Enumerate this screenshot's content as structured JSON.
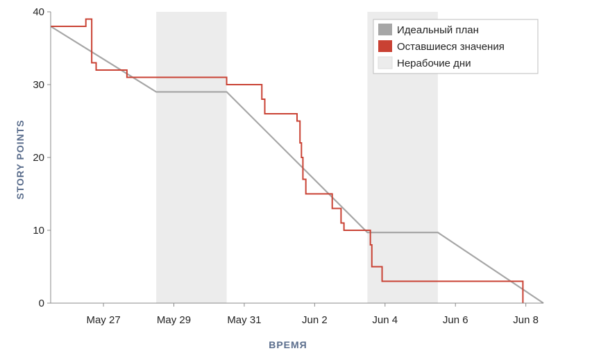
{
  "chart_data": {
    "type": "line",
    "title": "",
    "xlabel": "ВРЕМЯ",
    "ylabel": "STORY POINTS",
    "x_axis_type": "date",
    "xlim": [
      "May 25 12:00",
      "Jun 8 12:00"
    ],
    "ylim": [
      0,
      40
    ],
    "y_ticks": [
      0,
      10,
      20,
      30,
      40
    ],
    "x_ticks": [
      {
        "date": "May 27",
        "label": "May 27"
      },
      {
        "date": "May 29",
        "label": "May 29"
      },
      {
        "date": "May 31",
        "label": "May 31"
      },
      {
        "date": "Jun 2",
        "label": "Jun 2"
      },
      {
        "date": "Jun 4",
        "label": "Jun 4"
      },
      {
        "date": "Jun 6",
        "label": "Jun 6"
      },
      {
        "date": "Jun 8",
        "label": "Jun 8"
      }
    ],
    "grid": false,
    "legend_position": "top-right",
    "non_working_days": [
      {
        "start": "May 28 12:00",
        "end": "May 30 12:00"
      },
      {
        "start": "Jun 3 12:00",
        "end": "Jun 5 12:00"
      }
    ],
    "series": [
      {
        "name": "Идеальный план",
        "color": "#a6a6a6",
        "points": [
          [
            "May 25 12:00",
            38
          ],
          [
            "May 28 12:00",
            29
          ],
          [
            "May 30 12:00",
            29
          ],
          [
            "Jun 3 12:00",
            9.7
          ],
          [
            "Jun 5 12:00",
            9.7
          ],
          [
            "Jun 8 12:00",
            0
          ]
        ]
      },
      {
        "name": "Оставшиеся значения",
        "color": "#c94133",
        "step": true,
        "points": [
          [
            "May 25 12:00",
            38
          ],
          [
            "May 26 12:00",
            38
          ],
          [
            "May 26 12:00",
            39
          ],
          [
            "May 26 16:00",
            39
          ],
          [
            "May 26 16:00",
            33
          ],
          [
            "May 26 19:00",
            33
          ],
          [
            "May 26 19:00",
            32
          ],
          [
            "May 27 16:00",
            32
          ],
          [
            "May 27 16:00",
            31
          ],
          [
            "May 30 12:00",
            31
          ],
          [
            "May 30 12:00",
            30
          ],
          [
            "May 31 12:00",
            30
          ],
          [
            "May 31 12:00",
            28
          ],
          [
            "May 31 14:00",
            28
          ],
          [
            "May 31 14:00",
            26
          ],
          [
            "Jun 1 12:00",
            26
          ],
          [
            "Jun 1 12:00",
            25
          ],
          [
            "Jun 1 14:00",
            25
          ],
          [
            "Jun 1 14:00",
            22
          ],
          [
            "Jun 1 15:00",
            22
          ],
          [
            "Jun 1 15:00",
            20
          ],
          [
            "Jun 1 16:00",
            20
          ],
          [
            "Jun 1 16:00",
            17
          ],
          [
            "Jun 1 18:00",
            17
          ],
          [
            "Jun 1 18:00",
            15
          ],
          [
            "Jun 2 12:00",
            15
          ],
          [
            "Jun 2 12:00",
            13
          ],
          [
            "Jun 2 18:00",
            13
          ],
          [
            "Jun 2 18:00",
            11
          ],
          [
            "Jun 2 20:00",
            11
          ],
          [
            "Jun 2 20:00",
            10
          ],
          [
            "Jun 3 14:00",
            10
          ],
          [
            "Jun 3 14:00",
            8
          ],
          [
            "Jun 3 15:00",
            8
          ],
          [
            "Jun 3 15:00",
            5
          ],
          [
            "Jun 3 22:00",
            5
          ],
          [
            "Jun 3 22:00",
            3
          ],
          [
            "Jun 7 22:00",
            3
          ],
          [
            "Jun 7 22:00",
            0
          ]
        ]
      }
    ],
    "legend": [
      {
        "label": "Идеальный план",
        "color": "#a6a6a6"
      },
      {
        "label": "Оставшиеся значения",
        "color": "#c94133"
      },
      {
        "label": "Нерабочие дни",
        "color": "#ececec"
      }
    ]
  }
}
